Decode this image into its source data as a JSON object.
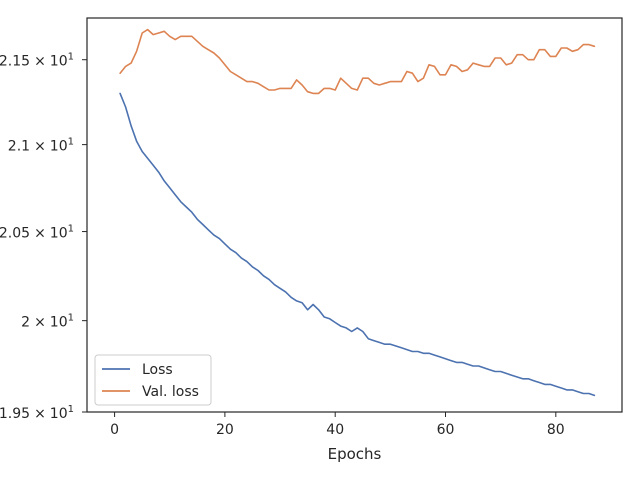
{
  "chart_data": {
    "type": "line",
    "title": "",
    "xlabel": "Epochs",
    "ylabel": "",
    "xlim": [
      -5,
      92
    ],
    "ylim": [
      19.5,
      21.75
    ],
    "x_ticks": [
      0,
      20,
      40,
      60,
      80
    ],
    "x_tick_labels": [
      "0",
      "20",
      "40",
      "60",
      "80"
    ],
    "y_ticks": [
      19.5,
      20.0,
      20.5,
      21.0,
      21.5
    ],
    "y_tick_labels": [
      {
        "mantissa": "1.95",
        "times": "×",
        "base": "10",
        "exp": "1"
      },
      {
        "mantissa": "2",
        "times": "×",
        "base": "10",
        "exp": "1"
      },
      {
        "mantissa": "2.05",
        "times": "×",
        "base": "10",
        "exp": "1"
      },
      {
        "mantissa": "2.1",
        "times": "×",
        "base": "10",
        "exp": "1"
      },
      {
        "mantissa": "2.15",
        "times": "×",
        "base": "10",
        "exp": "1"
      }
    ],
    "y_scale": "log",
    "grid": false,
    "legend_position": "lower-left",
    "x": [
      1,
      2,
      3,
      4,
      5,
      6,
      7,
      8,
      9,
      10,
      11,
      12,
      13,
      14,
      15,
      16,
      17,
      18,
      19,
      20,
      21,
      22,
      23,
      24,
      25,
      26,
      27,
      28,
      29,
      30,
      31,
      32,
      33,
      34,
      35,
      36,
      37,
      38,
      39,
      40,
      41,
      42,
      43,
      44,
      45,
      46,
      47,
      48,
      49,
      50,
      51,
      52,
      53,
      54,
      55,
      56,
      57,
      58,
      59,
      60,
      61,
      62,
      63,
      64,
      65,
      66,
      67,
      68,
      69,
      70,
      71,
      72,
      73,
      74,
      75,
      76,
      77,
      78,
      79,
      80,
      81,
      82,
      83,
      84,
      85,
      86,
      87
    ],
    "series": [
      {
        "name": "Loss",
        "color": "#4c72b0",
        "values": [
          21.3,
          21.22,
          21.11,
          21.02,
          20.96,
          20.92,
          20.88,
          20.84,
          20.79,
          20.75,
          20.71,
          20.67,
          20.64,
          20.61,
          20.57,
          20.54,
          20.51,
          20.48,
          20.46,
          20.43,
          20.4,
          20.38,
          20.35,
          20.33,
          20.3,
          20.28,
          20.25,
          20.23,
          20.2,
          20.18,
          20.16,
          20.13,
          20.11,
          20.1,
          20.06,
          20.09,
          20.06,
          20.02,
          20.01,
          19.99,
          19.97,
          19.96,
          19.94,
          19.96,
          19.94,
          19.9,
          19.89,
          19.88,
          19.87,
          19.87,
          19.86,
          19.85,
          19.84,
          19.83,
          19.83,
          19.82,
          19.82,
          19.81,
          19.8,
          19.79,
          19.78,
          19.77,
          19.77,
          19.76,
          19.75,
          19.75,
          19.74,
          19.73,
          19.72,
          19.72,
          19.71,
          19.7,
          19.69,
          19.68,
          19.68,
          19.67,
          19.66,
          19.65,
          19.65,
          19.64,
          19.63,
          19.62,
          19.62,
          19.61,
          19.6,
          19.6,
          19.59
        ]
      },
      {
        "name": "Val. loss",
        "color": "#dd8452",
        "values": [
          21.42,
          21.46,
          21.48,
          21.55,
          21.66,
          21.68,
          21.65,
          21.66,
          21.67,
          21.64,
          21.62,
          21.64,
          21.64,
          21.64,
          21.61,
          21.58,
          21.56,
          21.54,
          21.51,
          21.47,
          21.43,
          21.41,
          21.39,
          21.37,
          21.37,
          21.36,
          21.34,
          21.32,
          21.32,
          21.33,
          21.33,
          21.33,
          21.38,
          21.35,
          21.31,
          21.3,
          21.3,
          21.33,
          21.33,
          21.32,
          21.39,
          21.36,
          21.33,
          21.32,
          21.39,
          21.39,
          21.36,
          21.35,
          21.36,
          21.37,
          21.37,
          21.37,
          21.43,
          21.42,
          21.37,
          21.39,
          21.47,
          21.46,
          21.41,
          21.41,
          21.47,
          21.46,
          21.43,
          21.44,
          21.48,
          21.47,
          21.46,
          21.46,
          21.51,
          21.51,
          21.47,
          21.48,
          21.53,
          21.53,
          21.5,
          21.5,
          21.56,
          21.56,
          21.52,
          21.52,
          21.57,
          21.57,
          21.55,
          21.56,
          21.59,
          21.59,
          21.58
        ]
      }
    ]
  }
}
